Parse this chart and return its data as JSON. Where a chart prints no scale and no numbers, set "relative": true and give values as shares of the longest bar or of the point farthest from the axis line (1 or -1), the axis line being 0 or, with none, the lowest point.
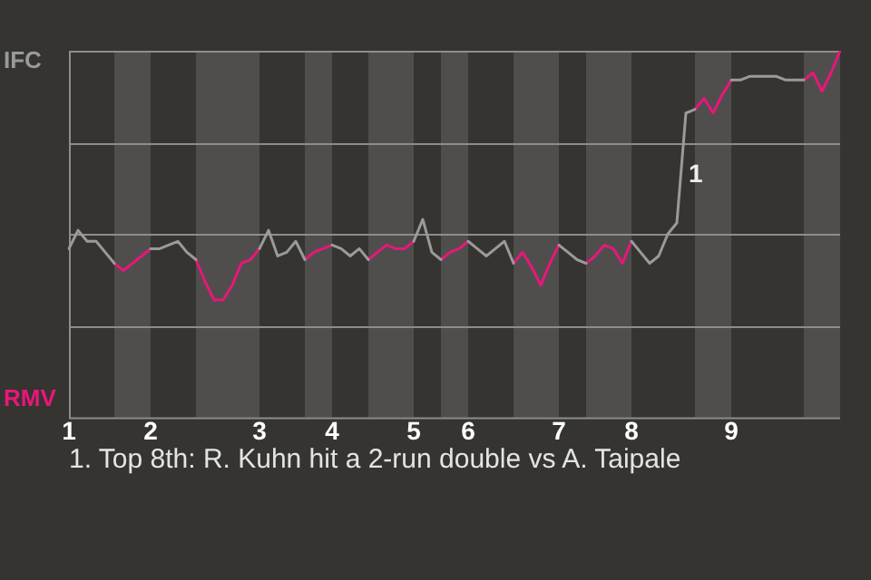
{
  "chart_data": {
    "type": "line",
    "categories": [
      "1",
      null,
      null,
      null,
      null,
      null,
      null,
      null,
      null,
      "2",
      null,
      null,
      null,
      null,
      null,
      null,
      null,
      null,
      null,
      null,
      null,
      "3",
      null,
      null,
      null,
      null,
      null,
      null,
      null,
      "4",
      null,
      null,
      null,
      null,
      null,
      null,
      null,
      null,
      "5",
      null,
      null,
      null,
      null,
      null,
      "6",
      null,
      null,
      null,
      null,
      null,
      null,
      null,
      null,
      null,
      "7",
      null,
      null,
      null,
      null,
      null,
      null,
      null,
      "8",
      null,
      null,
      null,
      null,
      null,
      null,
      null,
      null,
      null,
      null,
      "9",
      null,
      null,
      null,
      null,
      null,
      null,
      null,
      null,
      null,
      null,
      null,
      null
    ],
    "series": [
      {
        "name": "IFC",
        "color": "#9a9a9a",
        "values": [
          0.46,
          0.51,
          0.48,
          0.48,
          0.45,
          0.42,
          null,
          null,
          null,
          0.46,
          0.46,
          0.47,
          0.48,
          0.45,
          0.43,
          null,
          null,
          null,
          null,
          null,
          null,
          0.46,
          0.51,
          0.44,
          0.45,
          0.48,
          0.43,
          null,
          null,
          0.47,
          0.46,
          0.44,
          0.46,
          0.43,
          null,
          null,
          null,
          null,
          0.48,
          0.54,
          0.45,
          0.43,
          null,
          null,
          0.48,
          0.46,
          0.44,
          0.46,
          0.48,
          0.42,
          null,
          null,
          null,
          null,
          0.47,
          0.45,
          0.43,
          0.42,
          null,
          null,
          null,
          null,
          0.48,
          0.45,
          0.42,
          0.44,
          0.5,
          0.53,
          0.83,
          0.84,
          null,
          null,
          null,
          0.92,
          0.92,
          0.93,
          0.93,
          0.93,
          0.93,
          0.92,
          0.92,
          0.92,
          null,
          null,
          null,
          null
        ]
      },
      {
        "name": "RMV",
        "color": "#e8177a",
        "values": [
          null,
          null,
          null,
          null,
          null,
          0.42,
          0.4,
          0.42,
          0.44,
          0.46,
          null,
          null,
          null,
          null,
          0.43,
          0.37,
          0.32,
          0.32,
          0.36,
          0.42,
          0.43,
          0.46,
          null,
          null,
          null,
          null,
          0.43,
          0.45,
          0.46,
          0.47,
          null,
          null,
          null,
          0.43,
          0.45,
          0.47,
          0.46,
          0.46,
          0.48,
          null,
          null,
          0.43,
          0.45,
          0.46,
          0.48,
          null,
          null,
          null,
          null,
          0.42,
          0.45,
          0.41,
          0.36,
          0.42,
          0.47,
          null,
          null,
          0.42,
          0.44,
          0.47,
          0.46,
          0.42,
          0.48,
          null,
          null,
          null,
          null,
          null,
          null,
          0.84,
          0.87,
          0.83,
          0.88,
          0.92,
          null,
          null,
          null,
          null,
          null,
          null,
          null,
          0.92,
          0.94,
          0.89,
          0.94,
          1
        ]
      }
    ],
    "relative": true,
    "grid": "y",
    "annotations": [
      "1",
      "1. Top 8th: R. Kuhn hit a 2-run double vs A. Taipale"
    ],
    "legend": "left",
    "marker": "none",
    "line_style": "solid"
  }
}
